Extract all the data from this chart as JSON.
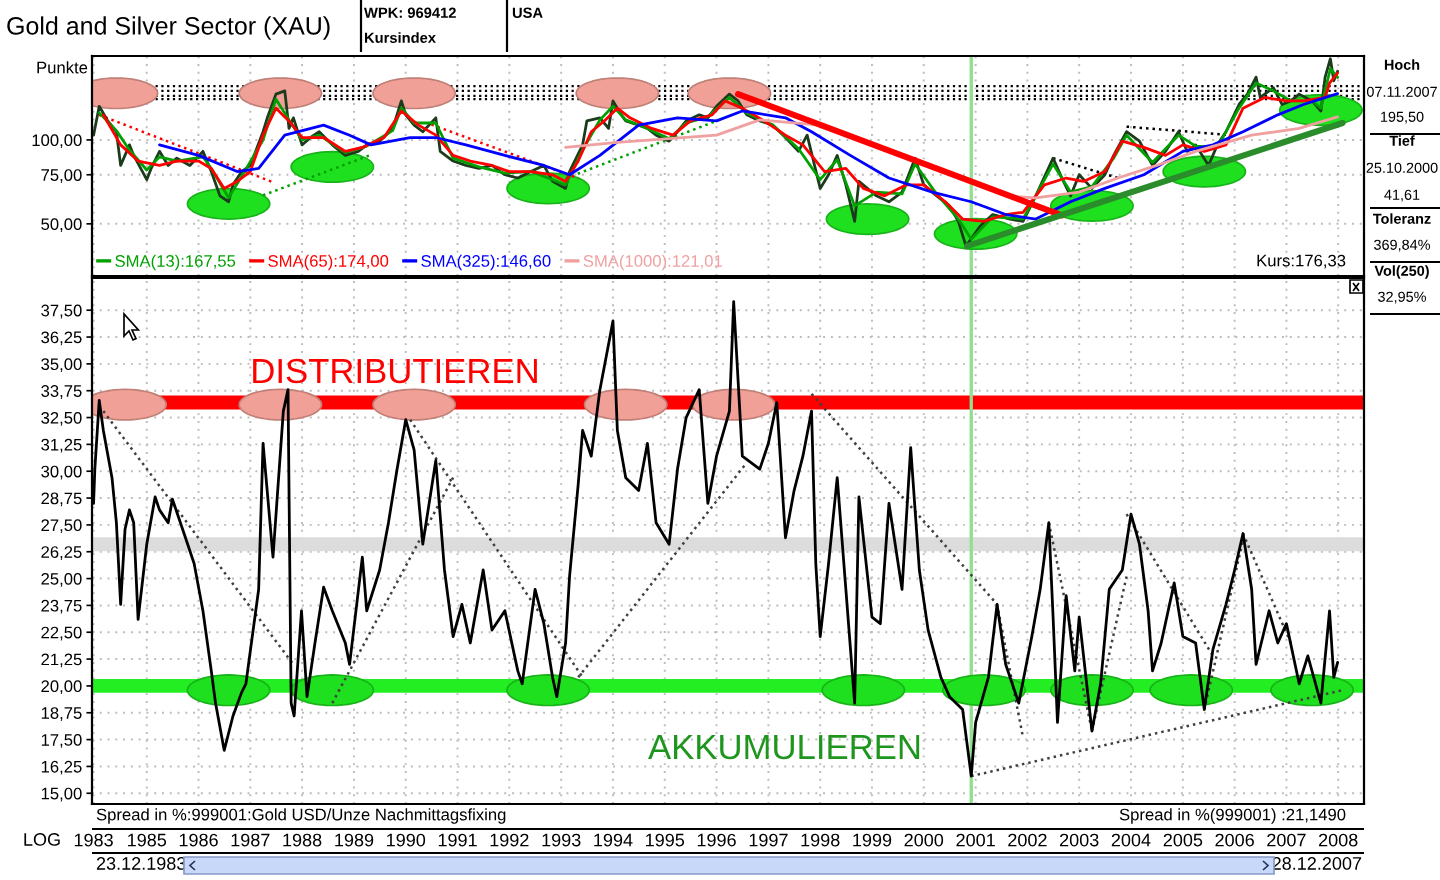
{
  "chart_data": [
    {
      "type": "line",
      "title": "Gold and Silver Sector (XAU)",
      "ylabel": "Punkte",
      "log": true,
      "xlim": [
        "1983-12-12",
        "2008-07"
      ],
      "ylim": [
        32.5,
        200
      ],
      "xticks": [
        {
          "value": "1983-12-23",
          "label": null
        },
        "1985",
        "1986",
        "1987",
        "1988",
        "1989",
        "1990",
        "1991",
        "1992",
        "1993",
        "1994",
        "1995",
        "1996",
        "1997",
        "1998",
        "1999",
        "2000",
        "2001",
        "2002",
        "2003",
        "2004",
        "2005",
        "2006",
        "2007",
        "2008"
      ],
      "yticks": [
        {
          "value": 50,
          "label": "50,00"
        },
        {
          "value": 75,
          "label": "75,00"
        },
        {
          "value": 100,
          "label": "100,00"
        }
      ],
      "tick_labels": "y",
      "grid": true,
      "legend": "bottom left",
      "ref_lines": [
        {
          "axis": "y",
          "value": 156,
          "color": "#000000",
          "line_style": "dotted"
        },
        {
          "axis": "y",
          "value": 150,
          "color": "#000000",
          "line_style": "dotted"
        },
        {
          "axis": "y",
          "value": 144,
          "color": "#000000",
          "line_style": "dotted"
        },
        {
          "axis": "y",
          "value": 140,
          "color": "#000000",
          "line_style": "dotted"
        },
        {
          "axis": "x",
          "value": "2000-12",
          "color": "#90e090"
        }
      ],
      "annotations": [
        "WPK: 969412",
        "Kursindex",
        "USA",
        "Kurs:176,33",
        "Hoch",
        "07.11.2007",
        "195,50",
        "Tief",
        "25.10.2000",
        "41,61",
        "Toleranz",
        "369,84%",
        "Vol(250)",
        "32,95%"
      ],
      "series": [
        {
          "type": "scatter",
          "marker": "circle",
          "color": "#f0a096",
          "x": [
            "1984-06",
            "1987-08",
            "1990-03",
            "1994-02",
            "1996-04"
          ],
          "values": [
            147,
            147,
            147,
            147,
            147
          ]
        },
        {
          "type": "scatter",
          "marker": "circle",
          "color": "#1ee01e",
          "x": [
            "1986-08",
            "1988-08",
            "1992-10",
            "1998-12",
            "2001-01",
            "2003-04",
            "2005-06",
            "2007-09"
          ],
          "values": [
            59,
            80,
            67,
            52,
            46,
            58,
            77,
            128
          ]
        },
        {
          "line_style": "dotted",
          "color": "#ff0000",
          "x": [
            "1984-02",
            "1987-06"
          ],
          "values": [
            123,
            70.8
          ]
        },
        {
          "line_style": "dotted",
          "color": "#00a000",
          "x": [
            "1987-04",
            "1989-05"
          ],
          "values": [
            63.3,
            88.4
          ]
        },
        {
          "line_style": "dotted",
          "color": "#00a000",
          "x": [
            "1993-02",
            "1996-01"
          ],
          "values": [
            72.8,
            117
          ]
        },
        {
          "line_style": "dotted",
          "color": "#ff0000",
          "x": [
            "1990-07",
            "1993-05"
          ],
          "values": [
            113.5,
            72.8
          ]
        },
        {
          "line_style": "dotted",
          "color": "#000000",
          "x": [
            "2002-07",
            "2003-10"
          ],
          "values": [
            86,
            73
          ]
        },
        {
          "line_style": "dotted",
          "color": "#000000",
          "x": [
            "2003-12",
            "2005-11"
          ],
          "values": [
            111.6,
            104.4
          ]
        },
        {
          "color": "#1c3a1c",
          "x": [
            "1983-12-23",
            "1984-02",
            "1984-04",
            "1984-06",
            "1984-07",
            "1984-09",
            "1984-10",
            "1985-01",
            "1985-02",
            "1985-04",
            "1985-06",
            "1985-08",
            "1985-11",
            "1986-02",
            "1986-04",
            "1986-06",
            "1986-08",
            "1986-09",
            "1986-11",
            "1987-01",
            "1987-04",
            "1987-05",
            "1987-07",
            "1987-09",
            "1987-10",
            "1987-11",
            "1988-01",
            "1988-03",
            "1988-05",
            "1988-08",
            "1988-11",
            "1989-02",
            "1989-04",
            "1989-07",
            "1989-10",
            "1989-12",
            "1990-01",
            "1990-03",
            "1990-05",
            "1990-08",
            "1990-09",
            "1990-12",
            "1991-03",
            "1991-06",
            "1991-09",
            "1991-12",
            "1992-03",
            "1992-06",
            "1992-09",
            "1992-11",
            "1993-02",
            "1993-03",
            "1993-06",
            "1993-07",
            "1993-10",
            "1993-12",
            "1994-01",
            "1994-03",
            "1994-04",
            "1994-07",
            "1994-09",
            "1994-11",
            "1995-02",
            "1995-04",
            "1995-06",
            "1995-09",
            "1995-11",
            "1996-01",
            "1996-04",
            "1996-06",
            "1996-08",
            "1996-11",
            "1997-02",
            "1997-05",
            "1997-08",
            "1997-10",
            "1998-01",
            "1998-03",
            "1998-05",
            "1998-07",
            "1998-09",
            "1998-10",
            "1999-02",
            "1999-05",
            "1999-08",
            "1999-11",
            "2000-01",
            "2000-04",
            "2000-07",
            "2000-09",
            "2000-10-25",
            "2001-02",
            "2001-05",
            "2001-09",
            "2001-12",
            "2002-03",
            "2002-07",
            "2002-09",
            "2002-11",
            "2003-01",
            "2003-04",
            "2003-07",
            "2003-09",
            "2003-12",
            "2004-03",
            "2004-06",
            "2004-09",
            "2004-12",
            "2005-02",
            "2005-04",
            "2005-07",
            "2005-09",
            "2005-11",
            "2006-02",
            "2006-04",
            "2006-06",
            "2006-07",
            "2006-10",
            "2006-12",
            "2007-02",
            "2007-04",
            "2007-07",
            "2007-09",
            "2007-10",
            "2007-11-07",
            "2007-12",
            "2007-12-28"
          ],
          "values": [
            104,
            132,
            117,
            107,
            81,
            96,
            88,
            72,
            79,
            91,
            81,
            86,
            81,
            91,
            77,
            63,
            60,
            69,
            77,
            81,
            107,
            120,
            146,
            150,
            110,
            120,
            96,
            102,
            107,
            96,
            88,
            91,
            96,
            99,
            110,
            138,
            123,
            113,
            107,
            120,
            91,
            84,
            81,
            79,
            81,
            75,
            73,
            77,
            81,
            71,
            67,
            77,
            96,
            117,
            120,
            110,
            138,
            123,
            117,
            113,
            110,
            104,
            99,
            107,
            117,
            123,
            120,
            132,
            146,
            138,
            123,
            117,
            113,
            102,
            91,
            104,
            67,
            75,
            88,
            69,
            51,
            71,
            63,
            60,
            65,
            86,
            69,
            63,
            58,
            51,
            41.61,
            49,
            54,
            52,
            51,
            63,
            86,
            73,
            63,
            75,
            67,
            75,
            88,
            107,
            99,
            81,
            91,
            107,
            91,
            96,
            81,
            96,
            107,
            134,
            146,
            168,
            142,
            154,
            134,
            138,
            146,
            138,
            127,
            168,
            195.5,
            163,
            176.33
          ]
        },
        {
          "name": "SMA(13):167,55",
          "color": "#00a000",
          "x": [
            "1984-02",
            "1984-06",
            "1984-09",
            "1985-01",
            "1985-04",
            "1985-08",
            "1986-02",
            "1986-04",
            "1986-08",
            "1986-11",
            "1987-04",
            "1987-07",
            "1987-10",
            "1988-01",
            "1988-05",
            "1988-11",
            "1989-04",
            "1989-10",
            "1989-12",
            "1990-03",
            "1990-08",
            "1990-12",
            "1991-06",
            "1991-12",
            "1992-06",
            "1992-11",
            "1993-02",
            "1993-06",
            "1993-10",
            "1994-01",
            "1994-04",
            "1994-09",
            "1995-02",
            "1995-06",
            "1995-11",
            "1996-04",
            "1996-08",
            "1997-02",
            "1997-08",
            "1998-01",
            "1998-05",
            "1998-09",
            "1999-02",
            "1999-08",
            "1999-11",
            "2000-04",
            "2000-09",
            "2000-12",
            "2001-05",
            "2001-12",
            "2002-07",
            "2002-11",
            "2003-04",
            "2003-09",
            "2003-12",
            "2004-06",
            "2004-12",
            "2005-04",
            "2005-09",
            "2006-02",
            "2006-06",
            "2006-10",
            "2007-02",
            "2007-07",
            "2007-09",
            "2007-11-07",
            "2007-12-28"
          ],
          "values": [
            125,
            108,
            92,
            78,
            87,
            84,
            87,
            79,
            62,
            74,
            100,
            140,
            118,
            100,
            104,
            90,
            95,
            108,
            130,
            115,
            115,
            86,
            80,
            76,
            77,
            72,
            69,
            92,
            118,
            132,
            118,
            110,
            101,
            115,
            121,
            142,
            125,
            113,
            93,
            72,
            85,
            58,
            65,
            64,
            82,
            64,
            52,
            44,
            53,
            52,
            82,
            65,
            68,
            86,
            104,
            83,
            104,
            95,
            94,
            130,
            160,
            150,
            138,
            138,
            130,
            180,
            167.55
          ]
        },
        {
          "name": "SMA(65):174,00",
          "color": "#ff0000",
          "x": [
            "1984-03",
            "1984-07",
            "1984-11",
            "1985-04",
            "1985-08",
            "1986-01",
            "1986-04",
            "1986-07",
            "1986-10",
            "1987-01",
            "1987-04",
            "1987-07",
            "1987-10",
            "1988-01",
            "1988-06",
            "1988-11",
            "1989-03",
            "1989-08",
            "1989-12",
            "1990-04",
            "1990-08",
            "1990-12",
            "1991-04",
            "1991-09",
            "1992-01",
            "1992-06",
            "1992-11",
            "1993-02",
            "1993-05",
            "1993-08",
            "1993-11",
            "1994-02",
            "1994-05",
            "1994-10",
            "1995-03",
            "1995-07",
            "1995-12",
            "1996-03",
            "1996-07",
            "1996-12",
            "1997-05",
            "1997-09",
            "1998-02",
            "1998-07",
            "1998-11",
            "1999-04",
            "1999-09",
            "2000-01",
            "2000-06",
            "2000-10",
            "2001-03",
            "2001-08",
            "2001-12",
            "2002-05",
            "2002-10",
            "2003-02",
            "2003-07",
            "2003-11",
            "2004-04",
            "2004-09",
            "2005-01",
            "2005-06",
            "2005-11",
            "2006-03",
            "2006-08",
            "2007-01",
            "2007-05",
            "2007-10",
            "2007-11",
            "2007-12-28"
          ],
          "values": [
            123,
            96,
            84,
            81,
            84,
            84,
            79,
            67,
            71,
            77,
            104,
            130,
            117,
            102,
            102,
            91,
            94,
            102,
            127,
            113,
            104,
            88,
            84,
            81,
            77,
            77,
            75,
            71,
            84,
            107,
            117,
            130,
            120,
            110,
            104,
            117,
            123,
            138,
            130,
            117,
            104,
            96,
            77,
            79,
            67,
            63,
            69,
            69,
            60,
            52,
            51,
            54,
            55,
            69,
            73,
            71,
            77,
            99,
            94,
            88,
            96,
            91,
            96,
            130,
            142,
            138,
            138,
            142,
            160,
            174
          ]
        },
        {
          "name": "SMA(325):146,60",
          "color": "#0000ff",
          "x": [
            "1985-04",
            "1986-01",
            "1986-10",
            "1987-03",
            "1987-09",
            "1988-06",
            "1988-12",
            "1989-05",
            "1990-02",
            "1990-08",
            "1991-03",
            "1991-12",
            "1992-09",
            "1993-03",
            "1993-10",
            "1994-07",
            "1995-04",
            "1996-01",
            "1996-07",
            "1997-05",
            "1997-11",
            "1998-08",
            "1999-05",
            "2000-03",
            "2000-12",
            "2001-08",
            "2002-03",
            "2002-11",
            "2003-07",
            "2004-04",
            "2005-01",
            "2005-08",
            "2006-03",
            "2006-11",
            "2007-05",
            "2007-12-28"
          ],
          "values": [
            96,
            88,
            77,
            79,
            104,
            113,
            104,
            96,
            102,
            102,
            96,
            88,
            81,
            75,
            88,
            113,
            120,
            117,
            127,
            120,
            107,
            88,
            73,
            65,
            60,
            54,
            52,
            60,
            67,
            75,
            91,
            96,
            107,
            123,
            134,
            146.6
          ]
        },
        {
          "name": "SMA(1000):121,01",
          "color": "#f0a0a0",
          "x": [
            "1993-02",
            "1994-02",
            "1995-02",
            "1996-01",
            "1996-11",
            "1998-01",
            "1999-02",
            "1999-12",
            "2000-12",
            "2001-08",
            "2002-03",
            "2003-01",
            "2003-10",
            "2004-07",
            "2005-04",
            "2006-05",
            "2007-04",
            "2007-12-28"
          ],
          "values": [
            94,
            98,
            101,
            104,
            118,
            113,
            96,
            84,
            71,
            63,
            62,
            65,
            73,
            81,
            91,
            104,
            110,
            121.01
          ]
        },
        {
          "color": "#ff0000",
          "x": [
            "1996-06",
            "2002-09"
          ],
          "values": [
            146,
            53.6
          ]
        },
        {
          "color": "#2a8c2a",
          "x": [
            "2000-11",
            "2008-02"
          ],
          "values": [
            41.6,
            115
          ]
        }
      ]
    },
    {
      "type": "line",
      "xlim": [
        "1983-12-12",
        "2008-07"
      ],
      "ylim": [
        14.5,
        39
      ],
      "xticks": [
        {
          "value": "1983-12-23",
          "label": "1983"
        },
        "1985",
        "1986",
        "1987",
        "1988",
        "1989",
        "1990",
        "1991",
        "1992",
        "1993",
        "1994",
        "1995",
        "1996",
        "1997",
        "1998",
        "1999",
        "2000",
        "2001",
        "2002",
        "2003",
        "2004",
        "2005",
        "2006",
        "2007",
        "2008"
      ],
      "yticks": [
        {
          "value": 15,
          "label": "15,00"
        },
        {
          "value": 16.25,
          "label": "16,25"
        },
        {
          "value": 17.5,
          "label": "17,50"
        },
        {
          "value": 18.75,
          "label": "18,75"
        },
        {
          "value": 20,
          "label": "20,00"
        },
        {
          "value": 21.25,
          "label": "21,25"
        },
        {
          "value": 22.5,
          "label": "22,50"
        },
        {
          "value": 23.75,
          "label": "23,75"
        },
        {
          "value": 25,
          "label": "25,00"
        },
        {
          "value": 26.25,
          "label": "26,25"
        },
        {
          "value": 27.5,
          "label": "27,50"
        },
        {
          "value": 28.75,
          "label": "28,75"
        },
        {
          "value": 30,
          "label": "30,00"
        },
        {
          "value": 31.25,
          "label": "31,25"
        },
        {
          "value": 32.5,
          "label": "32,50"
        },
        {
          "value": 33.75,
          "label": "33,75"
        },
        {
          "value": 35,
          "label": "35,00"
        },
        {
          "value": 36.25,
          "label": "36,25"
        },
        {
          "value": 37.5,
          "label": "37,50"
        }
      ],
      "grid": true,
      "ref_lines": [
        {
          "axis": "y",
          "value": 33.2,
          "color": "#ff0000"
        },
        {
          "axis": "y",
          "value": 26.6,
          "color": "#dcdcdc"
        },
        {
          "axis": "y",
          "value": 20,
          "color": "#22ee22"
        },
        {
          "axis": "x",
          "value": "2000-12",
          "color": "#90e090"
        }
      ],
      "annotations": [
        "DISTRIBUTIEREN",
        "AKKUMULIEREN",
        "Spread in %:999001:Gold USD/Unze Nachmittagsfixing",
        "Spread in %(999001) :21,1490",
        "LOG",
        "23.12.1983",
        "28.12.2007"
      ],
      "series": [
        {
          "type": "scatter",
          "marker": "circle",
          "color": "#f0a096",
          "x": [
            "1984-08",
            "1987-08",
            "1990-03",
            "1994-04",
            "1996-05"
          ],
          "values": [
            33.1,
            33.1,
            33.1,
            33.1,
            33.1
          ]
        },
        {
          "type": "scatter",
          "marker": "circle",
          "color": "#1ee01e",
          "x": [
            "1986-08",
            "1988-08",
            "1992-10",
            "1998-11",
            "2001-03",
            "2003-04",
            "2005-03",
            "2007-07"
          ],
          "values": [
            19.8,
            19.8,
            19.8,
            19.8,
            19.8,
            19.8,
            19.8,
            19.8
          ]
        },
        {
          "line_style": "dotted",
          "color": "#404040",
          "x": [
            "1984-03",
            "1987-11"
          ],
          "values": [
            32.8,
            21.0
          ]
        },
        {
          "line_style": "dotted",
          "color": "#404040",
          "x": [
            "1988-08",
            "1990-12"
          ],
          "values": [
            19.2,
            29.7
          ]
        },
        {
          "line_style": "dotted",
          "color": "#404040",
          "x": [
            "1990-02",
            "1993-06"
          ],
          "values": [
            32.4,
            20.4
          ]
        },
        {
          "line_style": "dotted",
          "color": "#404040",
          "x": [
            "1993-05",
            "1996-08"
          ],
          "values": [
            20.4,
            30.4
          ]
        },
        {
          "line_style": "dotted",
          "color": "#404040",
          "x": [
            "1997-11",
            "2001-06"
          ],
          "values": [
            33.6,
            23.8
          ]
        },
        {
          "line_style": "dotted",
          "color": "#404040",
          "x": [
            "2000-12",
            "2008-02"
          ],
          "values": [
            15.8,
            19.8
          ]
        },
        {
          "line_style": "dotted",
          "color": "#404040",
          "x": [
            "2001-06",
            "2001-12"
          ],
          "values": [
            23.8,
            17.6
          ]
        },
        {
          "line_style": "dotted",
          "color": "#404040",
          "x": [
            "2002-06",
            "2003-04"
          ],
          "values": [
            27.6,
            17.9
          ]
        },
        {
          "line_style": "dotted",
          "color": "#404040",
          "x": [
            "2003-04",
            "2003-12"
          ],
          "values": [
            17.9,
            25.1
          ]
        },
        {
          "line_style": "dotted",
          "color": "#404040",
          "x": [
            "2003-12",
            "2005-08"
          ],
          "values": [
            28.0,
            21.4
          ]
        },
        {
          "line_style": "dotted",
          "color": "#404040",
          "x": [
            "2005-06",
            "2006-03"
          ],
          "values": [
            18.9,
            26.8
          ]
        },
        {
          "line_style": "dotted",
          "color": "#404040",
          "x": [
            "2006-03",
            "2007-02"
          ],
          "values": [
            27.1,
            22.0
          ]
        },
        {
          "color": "#000000",
          "x": [
            "1983-12-23",
            "1984-01",
            "1984-02",
            "1984-03",
            "1984-05",
            "1984-06",
            "1984-07",
            "1984-08",
            "1984-09",
            "1984-10",
            "1984-11",
            "1985-01",
            "1985-03",
            "1985-04",
            "1985-06",
            "1985-07",
            "1985-10",
            "1985-12",
            "1986-02",
            "1986-04",
            "1986-05",
            "1986-07",
            "1986-09",
            "1986-11",
            "1986-12",
            "1987-03",
            "1987-04",
            "1987-06-10",
            "1987-08-22",
            "1987-09-24",
            "1987-10-16",
            "1987-11-06",
            "1987-12-28",
            "1988-02-05",
            "1988-04",
            "1988-06",
            "1988-08",
            "1988-11",
            "1988-12",
            "1989-03",
            "1989-04",
            "1989-07",
            "1989-09",
            "1989-11",
            "1990-01",
            "1990-03",
            "1990-05",
            "1990-08",
            "1990-10",
            "1990-12",
            "1991-02",
            "1991-04",
            "1991-07",
            "1991-09",
            "1991-12",
            "1992-03",
            "1992-04",
            "1992-07",
            "1992-09",
            "1992-11",
            "1992-12",
            "1993-02",
            "1993-03",
            "1993-05",
            "1993-06",
            "1993-08",
            "1993-10",
            "1994-01",
            "1994-02",
            "1994-04",
            "1994-07",
            "1994-09",
            "1994-11",
            "1995-02",
            "1995-04",
            "1995-06",
            "1995-09",
            "1995-11",
            "1996-01",
            "1996-04",
            "1996-05",
            "1996-07",
            "1996-11",
            "1997-01",
            "1997-03",
            "1997-05",
            "1997-07",
            "1997-09",
            "1997-11",
            "1997-12",
            "1998-01",
            "1998-03",
            "1998-05",
            "1998-07",
            "1998-09",
            "1998-10",
            "1999-01",
            "1999-03",
            "1999-05",
            "1999-08",
            "1999-10",
            "1999-12",
            "2000-02",
            "2000-05",
            "2000-07",
            "2000-10",
            "2000-12",
            "2001-01",
            "2001-04",
            "2001-06",
            "2001-08",
            "2001-11",
            "2002-02",
            "2002-04",
            "2002-06",
            "2002-07",
            "2002-08",
            "2002-10",
            "2002-12",
            "2003-01",
            "2003-04",
            "2003-06",
            "2003-08",
            "2003-11",
            "2004-01",
            "2004-03",
            "2004-05",
            "2004-06",
            "2004-08",
            "2004-11",
            "2005-01",
            "2005-04",
            "2005-06",
            "2005-08",
            "2005-11",
            "2006-01",
            "2006-03",
            "2006-05",
            "2006-06",
            "2006-09",
            "2006-11",
            "2007-01",
            "2007-04",
            "2007-06",
            "2007-09",
            "2007-11",
            "2007-12",
            "2007-12-28"
          ],
          "values": [
            28.5,
            30.1,
            33.3,
            31.9,
            29.7,
            27.6,
            23.8,
            27.3,
            28.2,
            27.6,
            23.1,
            26.6,
            28.8,
            28.2,
            27.6,
            28.7,
            26.9,
            25.7,
            23.5,
            20.7,
            19.2,
            17.0,
            18.6,
            19.7,
            20.1,
            24.5,
            31.3,
            26.0,
            32.8,
            33.8,
            19.2,
            18.6,
            23.5,
            19.5,
            22.0,
            24.6,
            23.5,
            22.0,
            21.0,
            26.0,
            23.5,
            25.4,
            27.6,
            30.1,
            32.4,
            31.0,
            26.6,
            30.5,
            25.4,
            22.3,
            23.8,
            22.0,
            25.4,
            22.6,
            23.5,
            20.7,
            20.1,
            24.5,
            22.9,
            20.4,
            19.5,
            22.0,
            25.1,
            29.4,
            31.9,
            30.7,
            33.8,
            37.0,
            31.9,
            29.7,
            29.1,
            31.3,
            27.6,
            26.6,
            30.1,
            32.5,
            33.8,
            28.5,
            30.7,
            32.8,
            37.9,
            30.7,
            30.1,
            31.3,
            33.2,
            26.9,
            29.1,
            30.7,
            32.8,
            25.7,
            22.3,
            25.7,
            29.7,
            24.5,
            19.2,
            28.8,
            23.2,
            22.9,
            28.5,
            24.5,
            31.1,
            25.4,
            22.6,
            20.4,
            19.5,
            18.9,
            15.8,
            18.3,
            20.4,
            23.8,
            21.0,
            19.2,
            22.3,
            24.5,
            27.6,
            23.2,
            18.3,
            24.2,
            20.7,
            23.2,
            17.9,
            20.1,
            24.5,
            25.4,
            28.0,
            26.6,
            23.5,
            20.7,
            22.0,
            24.8,
            22.3,
            22.0,
            18.9,
            21.7,
            23.8,
            25.4,
            27.1,
            24.5,
            21.0,
            23.5,
            22.0,
            22.9,
            20.1,
            21.4,
            19.2,
            23.5,
            20.4,
            21.1
          ]
        }
      ]
    }
  ]
}
